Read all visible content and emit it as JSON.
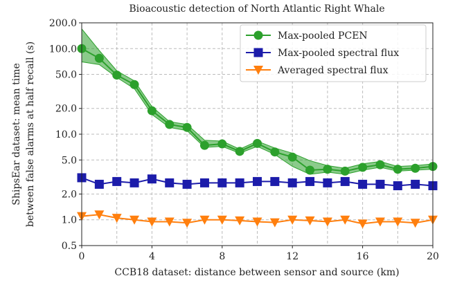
{
  "chart_data": {
    "type": "line",
    "title": "Bioacoustic detection of North Atlantic Right Whale",
    "x_label": "CCB18 dataset: distance between sensor and source (km)",
    "y_label": [
      "ShipsEar dataset: mean time",
      "between false alarms at half recall (s)"
    ],
    "x": [
      0,
      1,
      2,
      3,
      4,
      5,
      6,
      7,
      8,
      9,
      10,
      11,
      12,
      13,
      14,
      15,
      16,
      17,
      18,
      19,
      20
    ],
    "series": [
      {
        "name": "Max-pooled PCEN",
        "color": "#2ca02c",
        "marker": "circle",
        "values": [
          100,
          77,
          49,
          38,
          18.8,
          13,
          12,
          7.4,
          7.7,
          6.3,
          7.8,
          6.2,
          5.4,
          3.8,
          3.9,
          3.7,
          4.1,
          4.4,
          3.9,
          4.0,
          4.2
        ],
        "lower": [
          70,
          65,
          46,
          34,
          17,
          12,
          11,
          7,
          7.2,
          6,
          7.2,
          5.8,
          4.2,
          3.4,
          3.6,
          3.4,
          3.8,
          4.1,
          3.7,
          3.8,
          3.9
        ],
        "upper": [
          170,
          95,
          55,
          42,
          21,
          14,
          13,
          8.5,
          8.3,
          6.7,
          8.3,
          6.9,
          6,
          4.9,
          4.3,
          4,
          4.5,
          4.8,
          4.2,
          4.3,
          4.5
        ]
      },
      {
        "name": "Max-pooled spectral flux",
        "color": "#1c1caa",
        "marker": "square",
        "values": [
          3.1,
          2.6,
          2.8,
          2.7,
          3.0,
          2.7,
          2.6,
          2.7,
          2.7,
          2.7,
          2.8,
          2.8,
          2.7,
          2.8,
          2.7,
          2.8,
          2.6,
          2.6,
          2.5,
          2.6,
          2.5
        ]
      },
      {
        "name": "Averaged spectral flux",
        "color": "#ff7f0e",
        "marker": "triangle",
        "values": [
          1.1,
          1.15,
          1.05,
          1.0,
          0.95,
          0.95,
          0.92,
          1.0,
          1.0,
          0.98,
          0.95,
          0.93,
          1.0,
          0.98,
          0.95,
          1.0,
          0.9,
          0.95,
          0.95,
          0.92,
          1.0
        ]
      }
    ],
    "xlim": [
      0,
      20
    ],
    "xticks": [
      0,
      4,
      8,
      12,
      16,
      20
    ],
    "xminor": [
      2,
      6,
      10,
      14,
      18
    ],
    "ylim": [
      0.5,
      200
    ],
    "ylog": true,
    "yticks": [
      {
        "value": 0.5,
        "label": "0.5"
      },
      {
        "value": 1,
        "label": "1.0"
      },
      {
        "value": 2,
        "label": "2.0"
      },
      {
        "value": 5,
        "label": "5.0"
      },
      {
        "value": 10,
        "label": "10.0"
      },
      {
        "value": 20,
        "label": "20.0"
      },
      {
        "value": 50,
        "label": "50.0"
      },
      {
        "value": 100,
        "label": "100.0"
      },
      {
        "value": 200,
        "label": "200.0"
      }
    ],
    "grid": true,
    "legend": "upper right"
  }
}
